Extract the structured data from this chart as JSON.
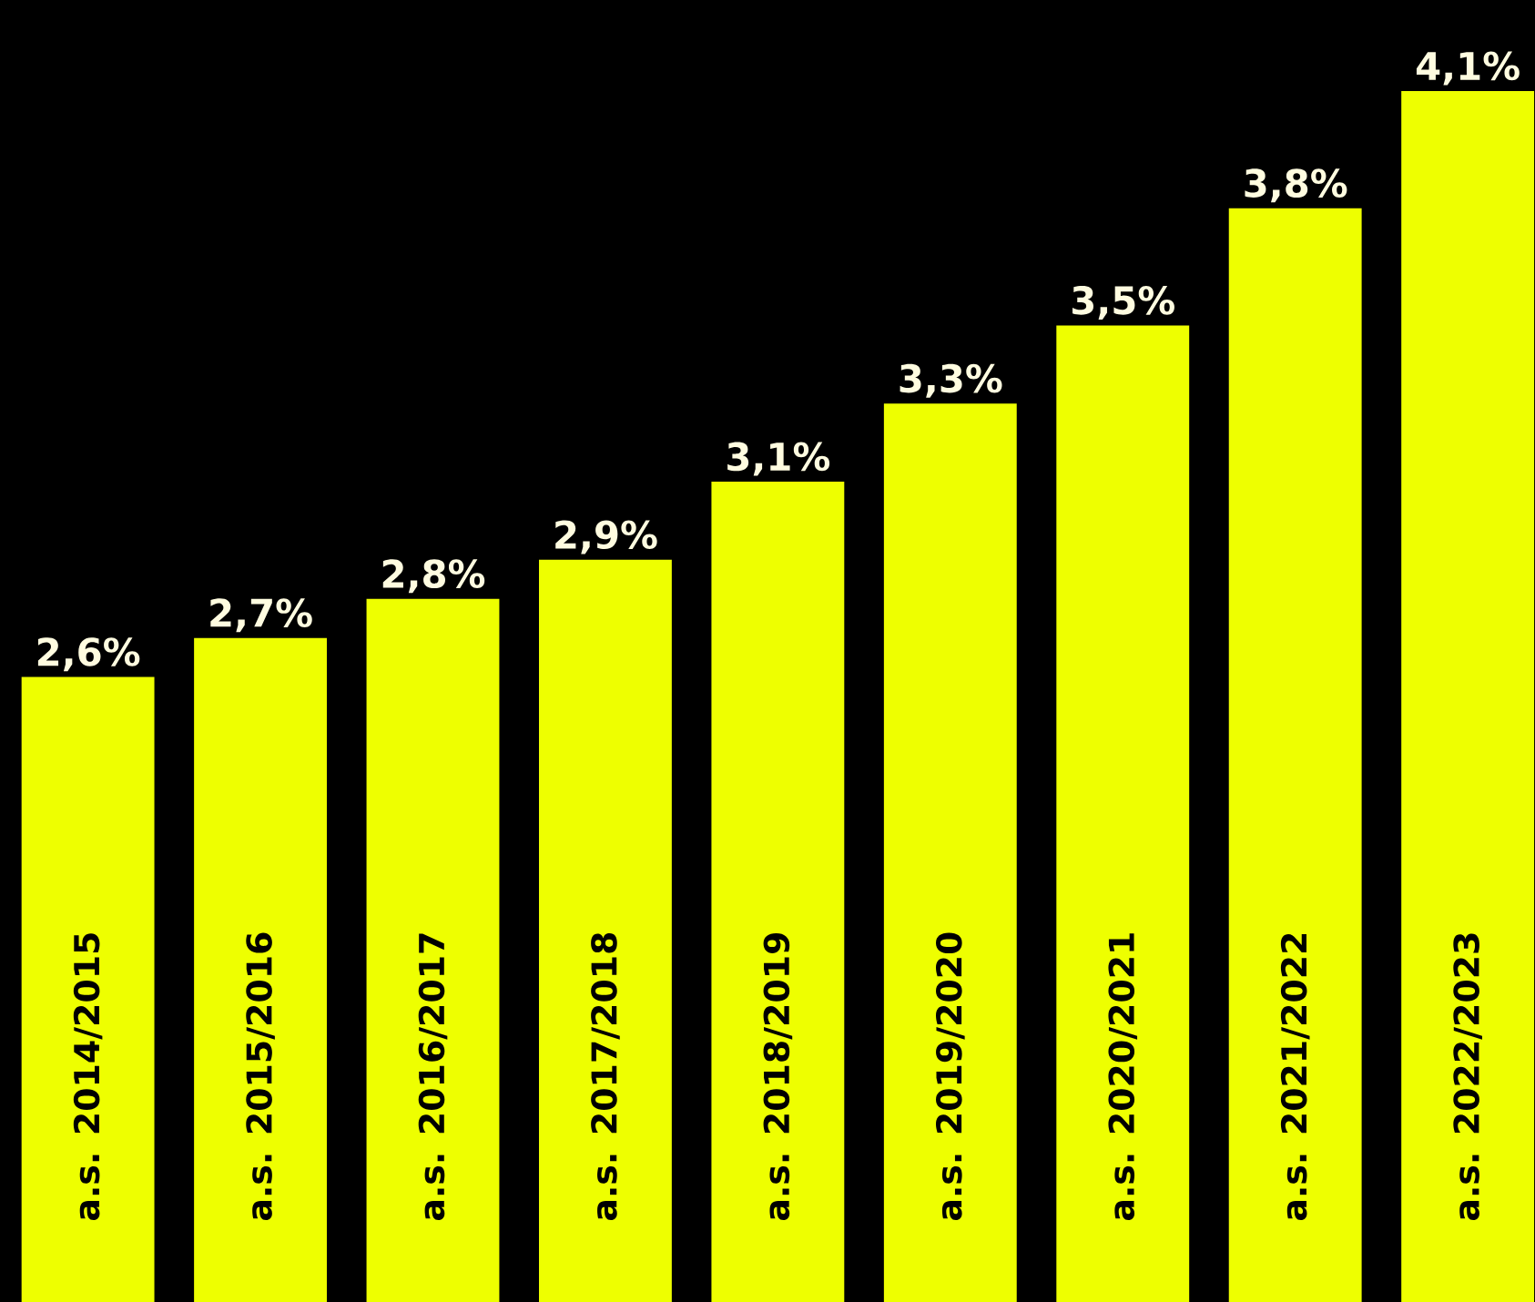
{
  "chart_data": {
    "type": "bar",
    "categories": [
      "a.s. 2014/2015",
      "a.s. 2015/2016",
      "a.s. 2016/2017",
      "a.s. 2017/2018",
      "a.s. 2018/2019",
      "a.s. 2019/2020",
      "a.s. 2020/2021",
      "a.s. 2021/2022",
      "a.s. 2022/2023"
    ],
    "values": [
      2.6,
      2.7,
      2.8,
      2.9,
      3.1,
      3.3,
      3.5,
      3.8,
      4.1
    ],
    "value_labels": [
      "2,6%",
      "2,7%",
      "2,8%",
      "2,9%",
      "3,1%",
      "3,3%",
      "3,5%",
      "3,8%",
      "4,1%"
    ],
    "color": "#eeff00",
    "ylim": [
      1,
      4.1
    ],
    "tick_labels": false
  }
}
